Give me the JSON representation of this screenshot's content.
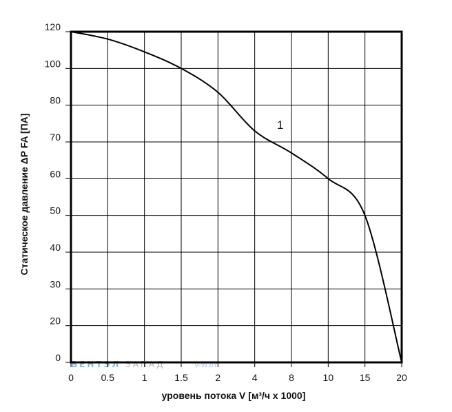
{
  "chart_data": {
    "type": "line",
    "xlabel": "уровень потока V [м³/ч x 1000]",
    "ylabel": "Статическое давление ΔP FA [ПА]",
    "x_tick_labels": [
      "0",
      "0.5",
      "1",
      "1.5",
      "2",
      "4",
      "8",
      "10",
      "15",
      "20"
    ],
    "y_tick_labels": [
      "0",
      "20",
      "30",
      "40",
      "50",
      "60",
      "70",
      "80",
      "100",
      "120"
    ],
    "grid": true,
    "series": [
      {
        "name": "1",
        "x": [
          0,
          0.5,
          1,
          1.5,
          2,
          4,
          8,
          10,
          15,
          20
        ],
        "y": [
          120,
          116,
          109,
          100,
          87,
          73,
          67,
          60,
          50,
          0
        ]
      }
    ],
    "curve_label": "1"
  },
  "watermark": {
    "part1": "ВЕНТЭЛ",
    "part2": "ЗАПАД",
    "part3": "V-W.BY"
  }
}
